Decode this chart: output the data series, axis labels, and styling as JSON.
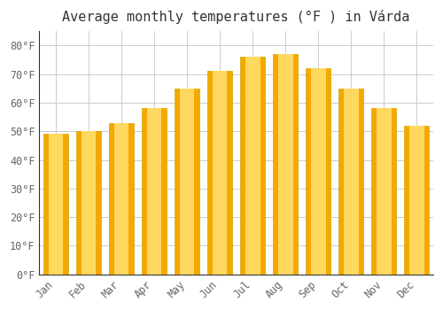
{
  "title": "Average monthly temperatures (°F ) in Várda",
  "months": [
    "Jan",
    "Feb",
    "Mar",
    "Apr",
    "May",
    "Jun",
    "Jul",
    "Aug",
    "Sep",
    "Oct",
    "Nov",
    "Dec"
  ],
  "values": [
    49,
    50,
    53,
    58,
    65,
    71,
    76,
    77,
    72,
    65,
    58,
    52
  ],
  "bar_color_center": "#FFD860",
  "bar_color_edge": "#F5A800",
  "bar_edge_color": "#CCAA00",
  "yticks": [
    0,
    10,
    20,
    30,
    40,
    50,
    60,
    70,
    80
  ],
  "ylim": [
    0,
    85
  ],
  "background_color": "#FFFFFF",
  "plot_bg_color": "#FFFFFF",
  "grid_color": "#CCCCCC",
  "title_fontsize": 11,
  "tick_fontsize": 8.5,
  "tick_color": "#666666",
  "title_color": "#333333",
  "bar_width": 0.75
}
